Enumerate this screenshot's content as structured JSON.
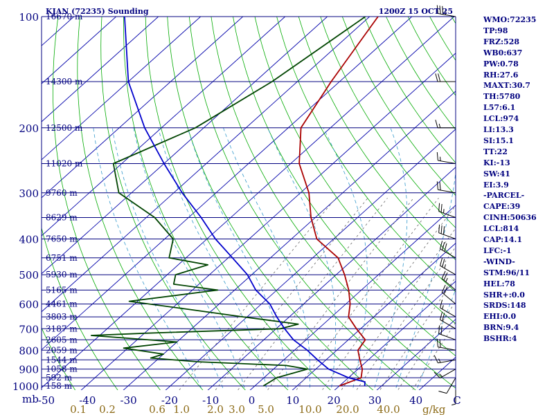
{
  "header": {
    "station": "KJAN (72235) Sounding",
    "time": "1200Z 15 OCT 25"
  },
  "sidebar": {
    "items": [
      "WMO:72235",
      "TP:98",
      "FRZ:528",
      "WB0:637",
      "PW:0.78",
      "RH:27.6",
      "MAXT:30.7",
      "TH:5780",
      "L57:6.1",
      "LCL:974",
      "LI:13.3",
      "SI:15.1",
      "TT:22",
      "KI:-13",
      "SW:41",
      "EI:3.9",
      "-PARCEL-",
      "CAPE:39",
      "CINH:50636",
      "LCL:814",
      "CAP:14.1",
      "LFC:-1",
      "-WIND-",
      "STM:96/11",
      "HEL:78",
      "SHR+:0.0",
      "SRDS:148",
      "EHI:0.0",
      "BRN:9.4",
      "BSHR:4"
    ]
  },
  "colors": {
    "isobar": "#00007f",
    "isotherm": "#0000aa",
    "dry_adiabat": "#00aa00",
    "moist_adiabat": "#3399cc",
    "mixing_ratio": "#666666",
    "temperature": "#aa0000",
    "dewpoint": "#004400",
    "parcel": "#0000cc",
    "mixing_label": "#8b6914"
  },
  "chart_data": {
    "type": "line",
    "title": "KJAN (72235) Sounding",
    "subtitle": "1200Z 15 OCT 25",
    "pressure_unit": "mb",
    "mixing_unit": "g/kg",
    "xlim": [
      -50,
      50
    ],
    "pressure_ticks": [
      "100",
      "200",
      "300",
      "400",
      "500",
      "600",
      "700",
      "800",
      "900",
      "1000"
    ],
    "pressure_tick_values": [
      100,
      200,
      300,
      400,
      500,
      600,
      700,
      800,
      900,
      1000
    ],
    "temp_ticks": [
      "-50",
      "-40",
      "-30",
      "-20",
      "-10",
      "0",
      "10",
      "20",
      "30",
      "40",
      "C"
    ],
    "mixing_ratio_ticks": [
      "0.1",
      "0.2",
      "0.6",
      "1.0",
      "2.0",
      "3.0",
      "5.0",
      "10.0",
      "20.0",
      "40.0"
    ],
    "mixing_ratio_values": [
      0.1,
      0.2,
      0.6,
      1.0,
      2.0,
      3.0,
      5.0,
      10.0,
      20.0,
      40.0
    ],
    "heights": [
      {
        "p": 100,
        "label": "16670 m"
      },
      {
        "p": 150,
        "label": "14300 m"
      },
      {
        "p": 200,
        "label": "12500 m"
      },
      {
        "p": 250,
        "label": "11020 m"
      },
      {
        "p": 300,
        "label": "9760 m"
      },
      {
        "p": 350,
        "label": "8629 m"
      },
      {
        "p": 400,
        "label": "7650 m"
      },
      {
        "p": 450,
        "label": "6751 m"
      },
      {
        "p": 500,
        "label": "5930 m"
      },
      {
        "p": 550,
        "label": "5165 m"
      },
      {
        "p": 600,
        "label": "4461 m"
      },
      {
        "p": 650,
        "label": "3803 m"
      },
      {
        "p": 700,
        "label": "3187 m"
      },
      {
        "p": 750,
        "label": "2605 m"
      },
      {
        "p": 800,
        "label": "2059 m"
      },
      {
        "p": 850,
        "label": "1544 m"
      },
      {
        "p": 900,
        "label": "1058 m"
      },
      {
        "p": 950,
        "label": "592 m"
      },
      {
        "p": 1000,
        "label": "158 m"
      }
    ],
    "series": [
      {
        "name": "temperature",
        "points": [
          [
            100,
            -68
          ],
          [
            150,
            -62
          ],
          [
            200,
            -57
          ],
          [
            250,
            -48
          ],
          [
            300,
            -38
          ],
          [
            350,
            -31
          ],
          [
            400,
            -24
          ],
          [
            450,
            -14
          ],
          [
            500,
            -8
          ],
          [
            550,
            -3
          ],
          [
            600,
            1
          ],
          [
            650,
            4
          ],
          [
            700,
            9
          ],
          [
            750,
            14
          ],
          [
            800,
            15
          ],
          [
            850,
            18
          ],
          [
            900,
            21
          ],
          [
            950,
            23
          ],
          [
            1000,
            20
          ]
        ]
      },
      {
        "name": "dewpoint",
        "points": [
          [
            100,
            -71
          ],
          [
            150,
            -76
          ],
          [
            200,
            -82
          ],
          [
            250,
            -92
          ],
          [
            300,
            -83
          ],
          [
            350,
            -68
          ],
          [
            400,
            -58
          ],
          [
            450,
            -54
          ],
          [
            470,
            -43
          ],
          [
            500,
            -48
          ],
          [
            530,
            -46
          ],
          [
            550,
            -34
          ],
          [
            590,
            -52
          ],
          [
            620,
            -36
          ],
          [
            650,
            -21
          ],
          [
            680,
            -6
          ],
          [
            700,
            -9
          ],
          [
            720,
            -40
          ],
          [
            730,
            -52
          ],
          [
            760,
            -30
          ],
          [
            790,
            -41
          ],
          [
            820,
            -30
          ],
          [
            840,
            -32
          ],
          [
            860,
            -20
          ],
          [
            880,
            2
          ],
          [
            900,
            8
          ],
          [
            950,
            3
          ],
          [
            1000,
            2
          ]
        ]
      },
      {
        "name": "parcel",
        "points": [
          [
            1000,
            26
          ],
          [
            975,
            25
          ],
          [
            950,
            20
          ],
          [
            900,
            13
          ],
          [
            850,
            8
          ],
          [
            800,
            3
          ],
          [
            750,
            -3
          ],
          [
            700,
            -8
          ],
          [
            650,
            -13
          ],
          [
            600,
            -18
          ],
          [
            550,
            -25
          ],
          [
            500,
            -31
          ],
          [
            450,
            -39
          ],
          [
            400,
            -48
          ],
          [
            350,
            -57
          ],
          [
            300,
            -68
          ],
          [
            250,
            -80
          ],
          [
            200,
            -94
          ],
          [
            150,
            -110
          ],
          [
            100,
            -128
          ]
        ]
      }
    ],
    "winds": [
      {
        "p": 1000,
        "dir": 180,
        "spd": 5
      },
      {
        "p": 950,
        "dir": 210,
        "spd": 10
      },
      {
        "p": 900,
        "dir": 240,
        "spd": 15
      },
      {
        "p": 850,
        "dir": 260,
        "spd": 15
      },
      {
        "p": 800,
        "dir": 280,
        "spd": 20
      },
      {
        "p": 750,
        "dir": 290,
        "spd": 20
      },
      {
        "p": 700,
        "dir": 300,
        "spd": 20
      },
      {
        "p": 650,
        "dir": 300,
        "spd": 15
      },
      {
        "p": 600,
        "dir": 310,
        "spd": 20
      },
      {
        "p": 550,
        "dir": 310,
        "spd": 25
      },
      {
        "p": 500,
        "dir": 300,
        "spd": 25
      },
      {
        "p": 450,
        "dir": 300,
        "spd": 30
      },
      {
        "p": 400,
        "dir": 290,
        "spd": 30
      },
      {
        "p": 350,
        "dir": 290,
        "spd": 25
      },
      {
        "p": 300,
        "dir": 280,
        "spd": 20
      },
      {
        "p": 250,
        "dir": 280,
        "spd": 15
      },
      {
        "p": 200,
        "dir": 270,
        "spd": 15
      },
      {
        "p": 150,
        "dir": 270,
        "spd": 20
      },
      {
        "p": 100,
        "dir": 280,
        "spd": 35
      }
    ]
  }
}
